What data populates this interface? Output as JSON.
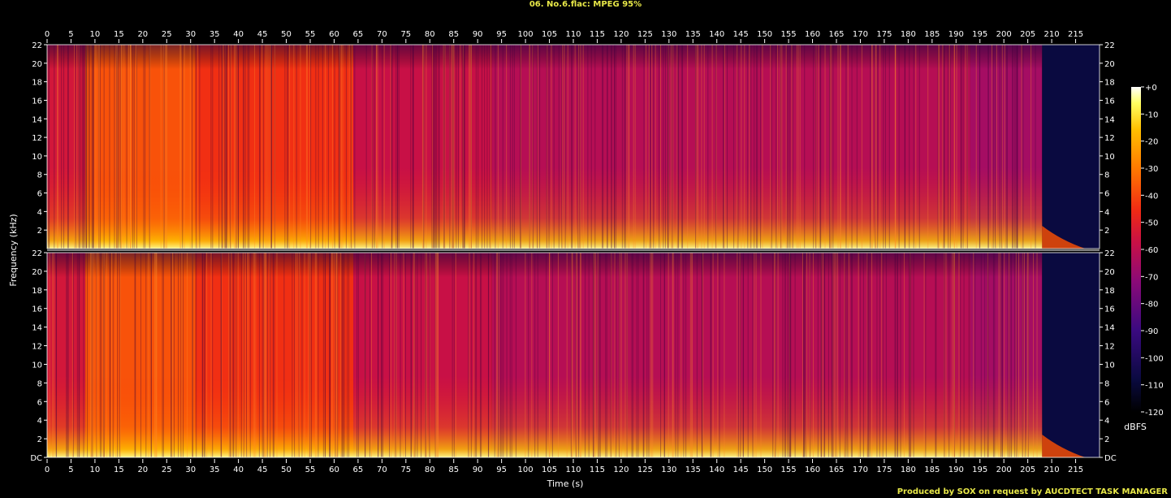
{
  "page_title": "06. No.6.flac: MPEG 95%",
  "credit": "Produced by SOX on request by AUCDTECT TASK MANAGER",
  "chart_data": {
    "type": "heatmap",
    "subtype": "spectrogram",
    "channels": 2,
    "xlabel": "Time (s)",
    "ylabel": "Frequency (kHz)",
    "xlim": [
      0,
      220
    ],
    "ylim": [
      0,
      22
    ],
    "x_ticks": [
      0,
      5,
      10,
      15,
      20,
      25,
      30,
      35,
      40,
      45,
      50,
      55,
      60,
      65,
      70,
      75,
      80,
      85,
      90,
      95,
      100,
      105,
      110,
      115,
      120,
      125,
      130,
      135,
      140,
      145,
      150,
      155,
      160,
      165,
      170,
      175,
      180,
      185,
      190,
      195,
      200,
      205,
      210,
      215
    ],
    "y_ticks_top": [
      "2",
      "4",
      "6",
      "8",
      "10",
      "12",
      "14",
      "16",
      "18",
      "20",
      "22"
    ],
    "y_ticks_bottom": [
      "DC",
      "2",
      "4",
      "6",
      "8",
      "10",
      "12",
      "14",
      "16",
      "18",
      "20",
      "22"
    ],
    "colorbar": {
      "label": "dBFS",
      "ticks": [
        "+0",
        "-10",
        "-20",
        "-30",
        "-40",
        "-50",
        "-60",
        "-70",
        "-80",
        "-90",
        "-100",
        "-110",
        "-120"
      ],
      "range": [
        -120,
        0
      ]
    },
    "regions_note_free": true,
    "segments": [
      {
        "t_start": 0,
        "t_end": 8,
        "level": -55
      },
      {
        "t_start": 8,
        "t_end": 31,
        "level": -38
      },
      {
        "t_start": 31,
        "t_end": 64,
        "level": -45
      },
      {
        "t_start": 64,
        "t_end": 93,
        "level": -58
      },
      {
        "t_start": 93,
        "t_end": 193,
        "level": -62
      },
      {
        "t_start": 193,
        "t_end": 208,
        "level": -66
      },
      {
        "t_start": 208,
        "t_end": 220,
        "level": -108
      }
    ],
    "colors": {
      "background": "#000000",
      "axis": "#ffffff",
      "title": "#e8e848"
    }
  }
}
